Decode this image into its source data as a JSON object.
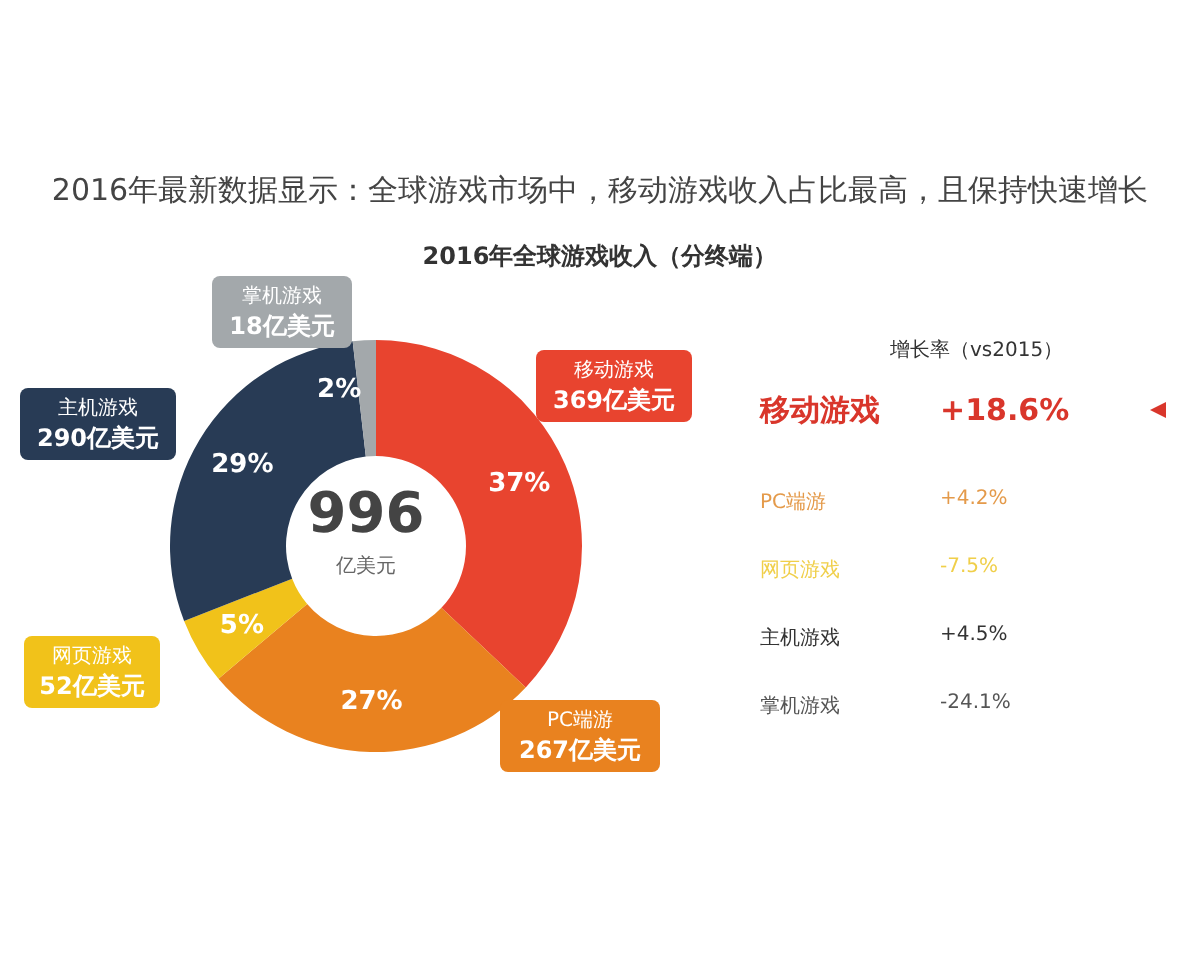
{
  "chart_data": [
    {
      "type": "donut",
      "title": "2016年最新数据显示：全球游戏市场中，移动游戏收入占比最高，且保持快速增长",
      "subtitle": "2016年全球游戏收入（分终端）",
      "categories": [
        "移动游戏",
        "PC端游",
        "网页游戏",
        "主机游戏",
        "掌机游戏"
      ],
      "values": [
        369,
        267,
        52,
        290,
        18
      ],
      "value_labels": [
        "369亿美元",
        "267亿美元",
        "52亿美元",
        "290亿美元",
        "18亿美元"
      ],
      "colors": [
        "#e8442f",
        "#e9821f",
        "#f1c21a",
        "#283b55",
        "#a3a8ab"
      ],
      "annotations": [
        "37%",
        "27%",
        "5%",
        "29%",
        "2%",
        "996",
        "亿美元"
      ]
    },
    {
      "type": "other",
      "title": "增长率（vs2015）",
      "categories": [
        "移动游戏",
        "PC端游",
        "网页游戏",
        "主机游戏",
        "掌机游戏"
      ],
      "value_labels": [
        "+18.6%",
        "+4.2%",
        "-7.5%",
        "+4.5%",
        "-24.1%"
      ],
      "colors": [
        "#d9362b",
        "#e49a4a",
        "#f0cf4a",
        "#333333",
        "#555555"
      ]
    }
  ]
}
